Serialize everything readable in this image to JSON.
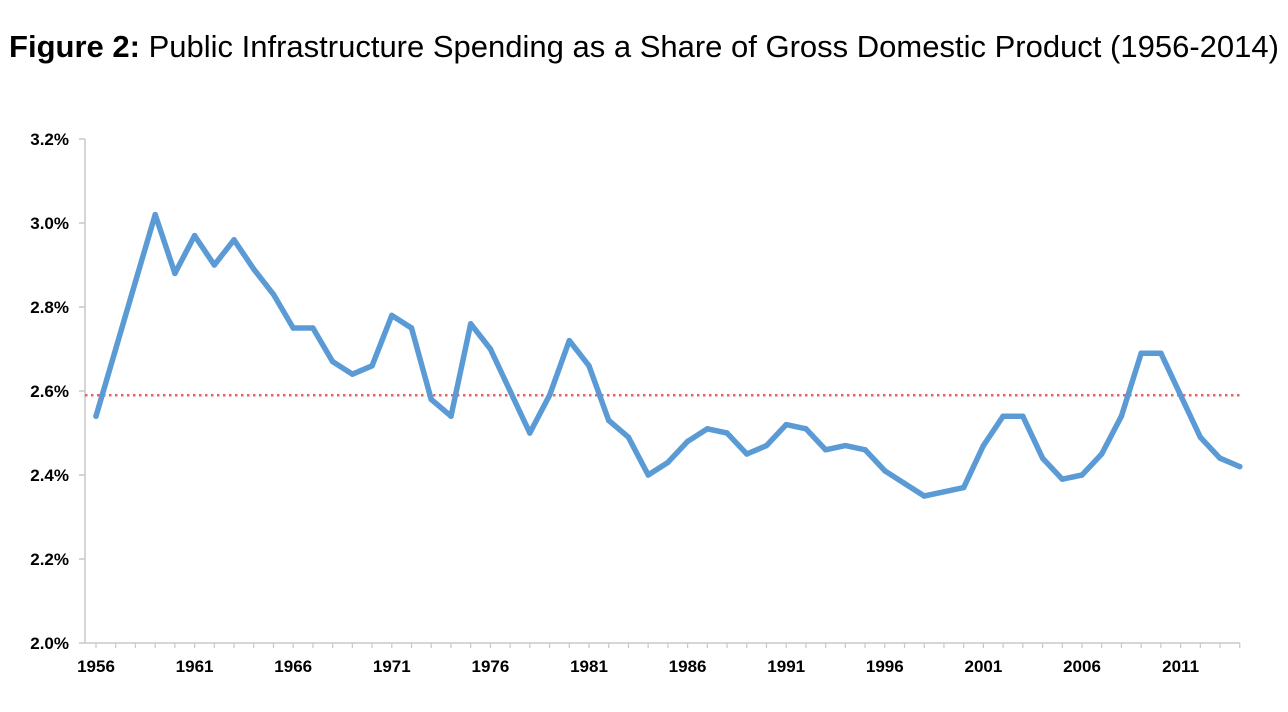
{
  "chart_data": {
    "type": "line",
    "title_prefix": "Figure 2:",
    "title": "Public Infrastructure Spending as a Share of Gross Domestic Product (1956-2014)",
    "xlabel": "",
    "ylabel": "",
    "ylim": [
      2.0,
      3.2
    ],
    "xlim": [
      1956,
      2014
    ],
    "y_ticks": [
      "2.0%",
      "2.2%",
      "2.4%",
      "2.6%",
      "2.8%",
      "3.0%",
      "3.2%"
    ],
    "y_tick_values": [
      2.0,
      2.2,
      2.4,
      2.6,
      2.8,
      3.0,
      3.2
    ],
    "x_ticks": [
      "1956",
      "1961",
      "1966",
      "1971",
      "1976",
      "1981",
      "1986",
      "1991",
      "1996",
      "2001",
      "2006",
      "2011"
    ],
    "x_tick_values": [
      1956,
      1961,
      1966,
      1971,
      1976,
      1981,
      1986,
      1991,
      1996,
      2001,
      2006,
      2011
    ],
    "grid": false,
    "legend": "none",
    "series": [
      {
        "color": "#5b9bd5",
        "x": [
          1956,
          1957,
          1958,
          1959,
          1960,
          1961,
          1962,
          1963,
          1964,
          1965,
          1966,
          1967,
          1968,
          1969,
          1970,
          1971,
          1972,
          1973,
          1974,
          1975,
          1976,
          1977,
          1978,
          1979,
          1980,
          1981,
          1982,
          1983,
          1984,
          1985,
          1986,
          1987,
          1988,
          1989,
          1990,
          1991,
          1992,
          1993,
          1994,
          1995,
          1996,
          1997,
          1998,
          1999,
          2000,
          2001,
          2002,
          2003,
          2004,
          2005,
          2006,
          2007,
          2008,
          2009,
          2010,
          2011,
          2012,
          2013,
          2014
        ],
        "values": [
          2.54,
          2.7,
          2.86,
          3.02,
          2.88,
          2.97,
          2.9,
          2.96,
          2.89,
          2.83,
          2.75,
          2.75,
          2.67,
          2.64,
          2.66,
          2.78,
          2.75,
          2.58,
          2.54,
          2.76,
          2.7,
          2.6,
          2.5,
          2.59,
          2.72,
          2.66,
          2.53,
          2.49,
          2.4,
          2.43,
          2.48,
          2.51,
          2.5,
          2.45,
          2.47,
          2.52,
          2.51,
          2.46,
          2.47,
          2.46,
          2.41,
          2.38,
          2.35,
          2.36,
          2.37,
          2.47,
          2.54,
          2.54,
          2.44,
          2.39,
          2.4,
          2.45,
          2.54,
          2.69,
          2.69,
          2.59,
          2.49,
          2.44,
          2.42
        ]
      }
    ],
    "reference_line": {
      "value": 2.59,
      "color": "#e06666",
      "style": "dotted"
    },
    "axis_color": "#c8c8c8"
  }
}
